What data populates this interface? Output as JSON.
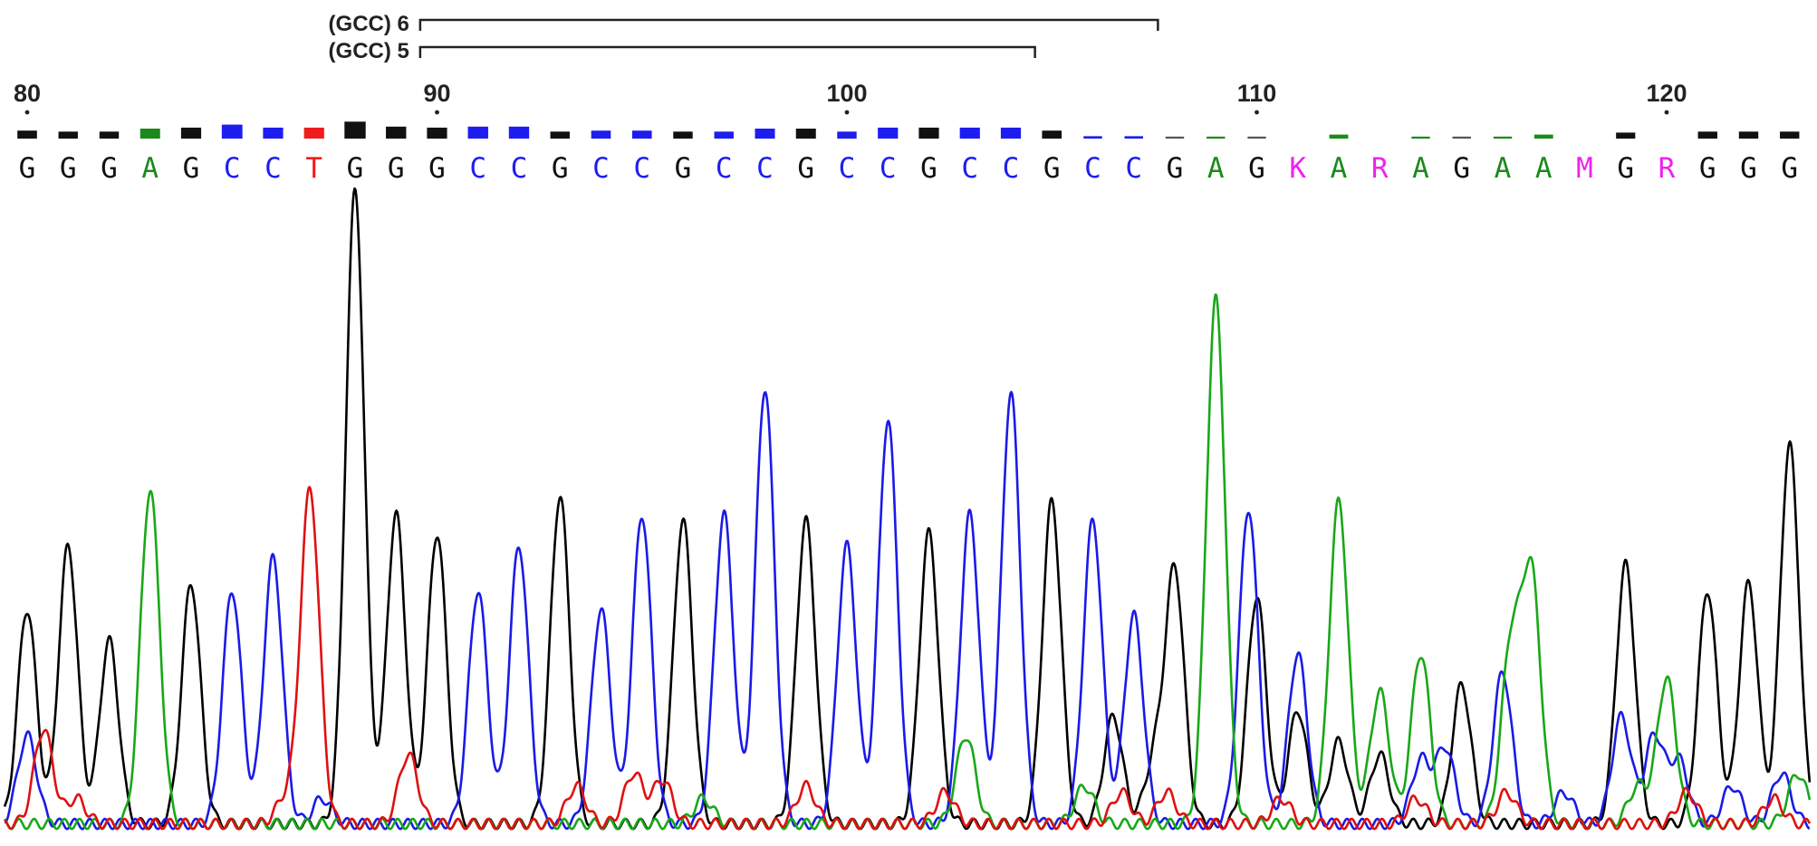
{
  "chart_data": {
    "type": "line",
    "title": "",
    "xlabel": "",
    "ylabel": "",
    "position_ticks": [
      80,
      90,
      100,
      110,
      120
    ],
    "first_position": 80,
    "last_position": 123,
    "base_colors": {
      "A": "#1a8a1a",
      "C": "#1d1df0",
      "G": "#111111",
      "T": "#ee1c1c",
      "K": "#ee22ee",
      "R": "#ee22ee",
      "M": "#ee22ee"
    },
    "base_calls": [
      {
        "pos": 80,
        "base": "G"
      },
      {
        "pos": 81,
        "base": "G"
      },
      {
        "pos": 82,
        "base": "G"
      },
      {
        "pos": 83,
        "base": "A"
      },
      {
        "pos": 84,
        "base": "G"
      },
      {
        "pos": 85,
        "base": "C"
      },
      {
        "pos": 86,
        "base": "C"
      },
      {
        "pos": 87,
        "base": "T"
      },
      {
        "pos": 88,
        "base": "G"
      },
      {
        "pos": 89,
        "base": "G"
      },
      {
        "pos": 90,
        "base": "G"
      },
      {
        "pos": 91,
        "base": "C"
      },
      {
        "pos": 92,
        "base": "C"
      },
      {
        "pos": 93,
        "base": "G"
      },
      {
        "pos": 94,
        "base": "C"
      },
      {
        "pos": 95,
        "base": "C"
      },
      {
        "pos": 96,
        "base": "G"
      },
      {
        "pos": 97,
        "base": "C"
      },
      {
        "pos": 98,
        "base": "C"
      },
      {
        "pos": 99,
        "base": "G"
      },
      {
        "pos": 100,
        "base": "C"
      },
      {
        "pos": 101,
        "base": "C"
      },
      {
        "pos": 102,
        "base": "G"
      },
      {
        "pos": 103,
        "base": "C"
      },
      {
        "pos": 104,
        "base": "C"
      },
      {
        "pos": 105,
        "base": "G"
      },
      {
        "pos": 106,
        "base": "C"
      },
      {
        "pos": 107,
        "base": "C"
      },
      {
        "pos": 108,
        "base": "G"
      },
      {
        "pos": 109,
        "base": "A"
      },
      {
        "pos": 110,
        "base": "G"
      },
      {
        "pos": 111,
        "base": "K"
      },
      {
        "pos": 112,
        "base": "A"
      },
      {
        "pos": 113,
        "base": "R"
      },
      {
        "pos": 114,
        "base": "A"
      },
      {
        "pos": 115,
        "base": "G"
      },
      {
        "pos": 116,
        "base": "A"
      },
      {
        "pos": 117,
        "base": "A"
      },
      {
        "pos": 118,
        "base": "M"
      },
      {
        "pos": 119,
        "base": "G"
      },
      {
        "pos": 120,
        "base": "R"
      },
      {
        "pos": 121,
        "base": "G"
      },
      {
        "pos": 122,
        "base": "G"
      },
      {
        "pos": 123,
        "base": "G"
      }
    ],
    "quality_bars": [
      {
        "pos": 80,
        "color": "black",
        "q": 0.4
      },
      {
        "pos": 81,
        "color": "black",
        "q": 0.35
      },
      {
        "pos": 82,
        "color": "black",
        "q": 0.35
      },
      {
        "pos": 83,
        "color": "green",
        "q": 0.5
      },
      {
        "pos": 84,
        "color": "black",
        "q": 0.55
      },
      {
        "pos": 85,
        "color": "blue",
        "q": 0.7
      },
      {
        "pos": 86,
        "color": "blue",
        "q": 0.55
      },
      {
        "pos": 87,
        "color": "red",
        "q": 0.55
      },
      {
        "pos": 88,
        "color": "black",
        "q": 0.85
      },
      {
        "pos": 89,
        "color": "black",
        "q": 0.6
      },
      {
        "pos": 90,
        "color": "black",
        "q": 0.55
      },
      {
        "pos": 91,
        "color": "blue",
        "q": 0.6
      },
      {
        "pos": 92,
        "color": "blue",
        "q": 0.6
      },
      {
        "pos": 93,
        "color": "black",
        "q": 0.35
      },
      {
        "pos": 94,
        "color": "blue",
        "q": 0.4
      },
      {
        "pos": 95,
        "color": "blue",
        "q": 0.4
      },
      {
        "pos": 96,
        "color": "black",
        "q": 0.35
      },
      {
        "pos": 97,
        "color": "blue",
        "q": 0.35
      },
      {
        "pos": 98,
        "color": "blue",
        "q": 0.5
      },
      {
        "pos": 99,
        "color": "black",
        "q": 0.5
      },
      {
        "pos": 100,
        "color": "blue",
        "q": 0.35
      },
      {
        "pos": 101,
        "color": "blue",
        "q": 0.55
      },
      {
        "pos": 102,
        "color": "black",
        "q": 0.55
      },
      {
        "pos": 103,
        "color": "blue",
        "q": 0.55
      },
      {
        "pos": 104,
        "color": "blue",
        "q": 0.55
      },
      {
        "pos": 105,
        "color": "black",
        "q": 0.4
      },
      {
        "pos": 106,
        "color": "blue",
        "q": 0.12
      },
      {
        "pos": 107,
        "color": "blue",
        "q": 0.12
      },
      {
        "pos": 108,
        "color": "black",
        "q": 0.1
      },
      {
        "pos": 109,
        "color": "green",
        "q": 0.1
      },
      {
        "pos": 110,
        "color": "black",
        "q": 0.1
      },
      {
        "pos": 111,
        "color": "magenta",
        "q": 0.0
      },
      {
        "pos": 112,
        "color": "green",
        "q": 0.2
      },
      {
        "pos": 113,
        "color": "magenta",
        "q": 0.0
      },
      {
        "pos": 114,
        "color": "green",
        "q": 0.1
      },
      {
        "pos": 115,
        "color": "black",
        "q": 0.1
      },
      {
        "pos": 116,
        "color": "green",
        "q": 0.1
      },
      {
        "pos": 117,
        "color": "green",
        "q": 0.2
      },
      {
        "pos": 118,
        "color": "magenta",
        "q": 0.0
      },
      {
        "pos": 119,
        "color": "black",
        "q": 0.3
      },
      {
        "pos": 120,
        "color": "magenta",
        "q": 0.0
      },
      {
        "pos": 121,
        "color": "black",
        "q": 0.35
      },
      {
        "pos": 122,
        "color": "black",
        "q": 0.35
      },
      {
        "pos": 123,
        "color": "black",
        "q": 0.35
      }
    ],
    "repeat_brackets": [
      {
        "label": "(GCC) 6",
        "start": 89.5,
        "end": 107.5
      },
      {
        "label": "(GCC) 5",
        "start": 89.5,
        "end": 104.5
      }
    ],
    "trace_colors": {
      "A": "#18a818",
      "C": "#1a1ae8",
      "G": "#000000",
      "T": "#e01010"
    },
    "y_max": 1.0,
    "peaks": {
      "G": [
        [
          80,
          0.34
        ],
        [
          81,
          0.44
        ],
        [
          82,
          0.29
        ],
        [
          84,
          0.38
        ],
        [
          88,
          1.0
        ],
        [
          89,
          0.49
        ],
        [
          90,
          0.46
        ],
        [
          93,
          0.52
        ],
        [
          96,
          0.48
        ],
        [
          99,
          0.48
        ],
        [
          102,
          0.46
        ],
        [
          105,
          0.51
        ],
        [
          108,
          0.4
        ],
        [
          110,
          0.36
        ],
        [
          111,
          0.18
        ],
        [
          112,
          0.13
        ],
        [
          113,
          0.11
        ],
        [
          115,
          0.22
        ],
        [
          119,
          0.41
        ],
        [
          121,
          0.37
        ],
        [
          122,
          0.38
        ],
        [
          123,
          0.6
        ],
        [
          106.5,
          0.17
        ],
        [
          107.5,
          0.1
        ]
      ],
      "C": [
        [
          85,
          0.37
        ],
        [
          86,
          0.42
        ],
        [
          87.2,
          0.04
        ],
        [
          91,
          0.37
        ],
        [
          92,
          0.44
        ],
        [
          94,
          0.34
        ],
        [
          95,
          0.49
        ],
        [
          97,
          0.49
        ],
        [
          98,
          0.69
        ],
        [
          100,
          0.44
        ],
        [
          101,
          0.64
        ],
        [
          103,
          0.49
        ],
        [
          104,
          0.68
        ],
        [
          106,
          0.48
        ],
        [
          107,
          0.33
        ],
        [
          109.8,
          0.5
        ],
        [
          111,
          0.27
        ],
        [
          114,
          0.1
        ],
        [
          114.6,
          0.12
        ],
        [
          116,
          0.24
        ],
        [
          117.5,
          0.05
        ],
        [
          118.9,
          0.17
        ],
        [
          120.3,
          0.1
        ],
        [
          121.6,
          0.06
        ],
        [
          122.8,
          0.08
        ],
        [
          80,
          0.14
        ],
        [
          119.7,
          0.14
        ]
      ],
      "A": [
        [
          83,
          0.53
        ],
        [
          102.9,
          0.14
        ],
        [
          109,
          0.83
        ],
        [
          112,
          0.51
        ],
        [
          113,
          0.21
        ],
        [
          114,
          0.27
        ],
        [
          116.2,
          0.28
        ],
        [
          116.7,
          0.39
        ],
        [
          119.3,
          0.06
        ],
        [
          120,
          0.23
        ],
        [
          123.2,
          0.08
        ],
        [
          105.8,
          0.06
        ],
        [
          96.5,
          0.04
        ]
      ],
      "T": [
        [
          80.4,
          0.15
        ],
        [
          81.2,
          0.04
        ],
        [
          86.9,
          0.53
        ],
        [
          86.3,
          0.04
        ],
        [
          89.3,
          0.11
        ],
        [
          93.4,
          0.06
        ],
        [
          94.8,
          0.08
        ],
        [
          95.5,
          0.07
        ],
        [
          99.0,
          0.06
        ],
        [
          102.4,
          0.05
        ],
        [
          106.7,
          0.05
        ],
        [
          107.8,
          0.05
        ],
        [
          110.6,
          0.04
        ],
        [
          113.9,
          0.04
        ],
        [
          116.1,
          0.05
        ],
        [
          120.5,
          0.05
        ],
        [
          122.6,
          0.04
        ]
      ]
    }
  }
}
